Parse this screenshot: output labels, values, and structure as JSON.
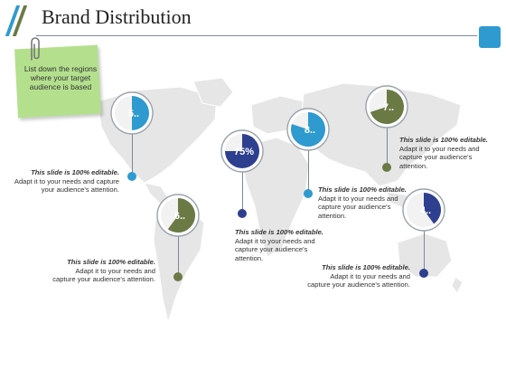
{
  "header": {
    "title": "Brand Distribution",
    "accent_colors": [
      "#2e9ad0",
      "#6b7a45"
    ],
    "corner_square_color": "#2e9ad0"
  },
  "sticky_note": {
    "text": "List down the regions where your target audience is based",
    "color": "#b4e08e",
    "icon": "paperclip-icon"
  },
  "palette": {
    "blue": "#2e9ad0",
    "olive": "#6b7a45",
    "navy": "#2f3f8f",
    "gray": "#b7b7b7"
  },
  "markers": [
    {
      "label": "5..",
      "percent": 50,
      "color": "#2e9ad0",
      "text_color": "#ffffff",
      "desc_title": "This slide is 100% editable.",
      "desc_body": "Adapt it to your needs and capture your audience's attention."
    },
    {
      "label": "6..",
      "percent": 60,
      "color": "#6b7a45",
      "text_color": "#ffffff",
      "desc_title": "This slide is 100% editable.",
      "desc_body": "Adapt it to your needs and capture your audience's attention."
    },
    {
      "label": "75%",
      "percent": 75,
      "color": "#2f3f8f",
      "text_color": "#ffffff",
      "desc_title": "This slide is 100% editable.",
      "desc_body": "Adapt it to your needs and capture your audience's attention."
    },
    {
      "label": "8..",
      "percent": 80,
      "color": "#2e9ad0",
      "text_color": "#ffffff",
      "desc_title": "This slide is 100% editable.",
      "desc_body": "Adapt it to your needs and capture your audience's attention."
    },
    {
      "label": "7..",
      "percent": 70,
      "color": "#6b7a45",
      "text_color": "#ffffff",
      "desc_title": "This slide is 100% editable.",
      "desc_body": "Adapt it to your needs and capture your audience's attention."
    },
    {
      "label": "4..",
      "percent": 40,
      "color": "#2f3f8f",
      "text_color": "#ffffff",
      "desc_title": "This slide is 100% editable.",
      "desc_body": "Adapt it to your needs and capture your audience's attention."
    }
  ]
}
